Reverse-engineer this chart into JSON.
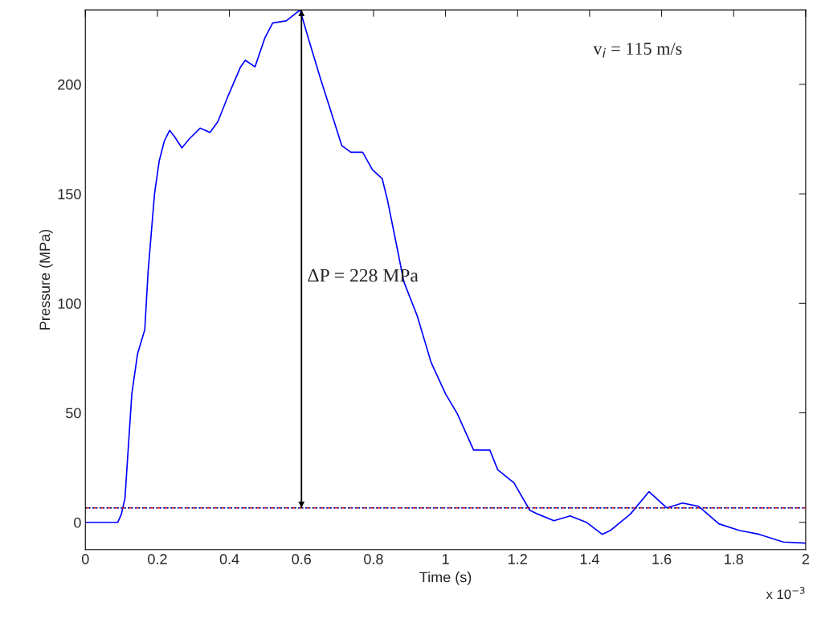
{
  "chart_data": {
    "type": "line",
    "xlabel": "Time (s)",
    "ylabel": "Pressure (MPa)",
    "x": [
      0,
      0.09,
      0.1,
      0.11,
      0.129,
      0.145,
      0.165,
      0.174,
      0.192,
      0.205,
      0.219,
      0.234,
      0.248,
      0.268,
      0.288,
      0.319,
      0.346,
      0.368,
      0.397,
      0.431,
      0.444,
      0.471,
      0.498,
      0.52,
      0.558,
      0.596,
      0.621,
      0.654,
      0.683,
      0.712,
      0.737,
      0.77,
      0.797,
      0.824,
      0.839,
      0.866,
      0.884,
      0.922,
      0.96,
      1.0,
      1.033,
      1.078,
      1.123,
      1.145,
      1.19,
      1.234,
      1.257,
      1.301,
      1.346,
      1.391,
      1.435,
      1.458,
      1.513,
      1.565,
      1.614,
      1.658,
      1.703,
      1.759,
      1.815,
      1.871,
      1.938,
      2.0
    ],
    "series": [
      {
        "color": "#0000ff",
        "values": [
          0,
          0,
          3.7,
          11,
          58.7,
          77,
          88,
          114,
          150,
          165,
          174,
          179,
          176,
          171,
          175,
          180,
          178,
          183,
          195,
          208,
          211,
          208,
          221,
          228,
          229,
          234,
          220,
          202,
          187,
          172,
          169,
          169,
          161,
          157,
          147,
          125,
          110,
          94,
          73,
          58.7,
          49.5,
          33,
          33,
          24,
          18,
          5.5,
          3.7,
          0.7,
          2.9,
          0,
          -5.5,
          -3.7,
          3.7,
          14,
          6.6,
          8.8,
          7.3,
          -0.7,
          -3.7,
          -5.5,
          -9,
          -9.5
        ]
      }
    ],
    "xlim": [
      0,
      2
    ],
    "ylim": [
      -12.5,
      234
    ],
    "xticks": [
      0,
      0.2,
      0.4,
      0.6,
      0.8,
      1,
      1.2,
      1.4,
      1.6,
      1.8,
      2
    ],
    "yticks": [
      0,
      50,
      100,
      150,
      200
    ],
    "ref_lines": [
      {
        "axis": "y",
        "value": 6.6,
        "color": "#ff0000",
        "line_style": "dashed"
      },
      {
        "axis": "y",
        "value": 6.6,
        "color": "#00bf00",
        "line_style": "dotted"
      },
      {
        "axis": "y",
        "value": 6.6,
        "color": "#0000ff",
        "line_style": "dotted"
      },
      {
        "axis": "x",
        "value": 0.6,
        "color": "#000000"
      }
    ],
    "annotations": [
      "ΔP = 228 MPa",
      "v$_{i}$ = 115 m/s",
      "x 10$^{−3}$"
    ],
    "grid": false,
    "legend": false
  }
}
